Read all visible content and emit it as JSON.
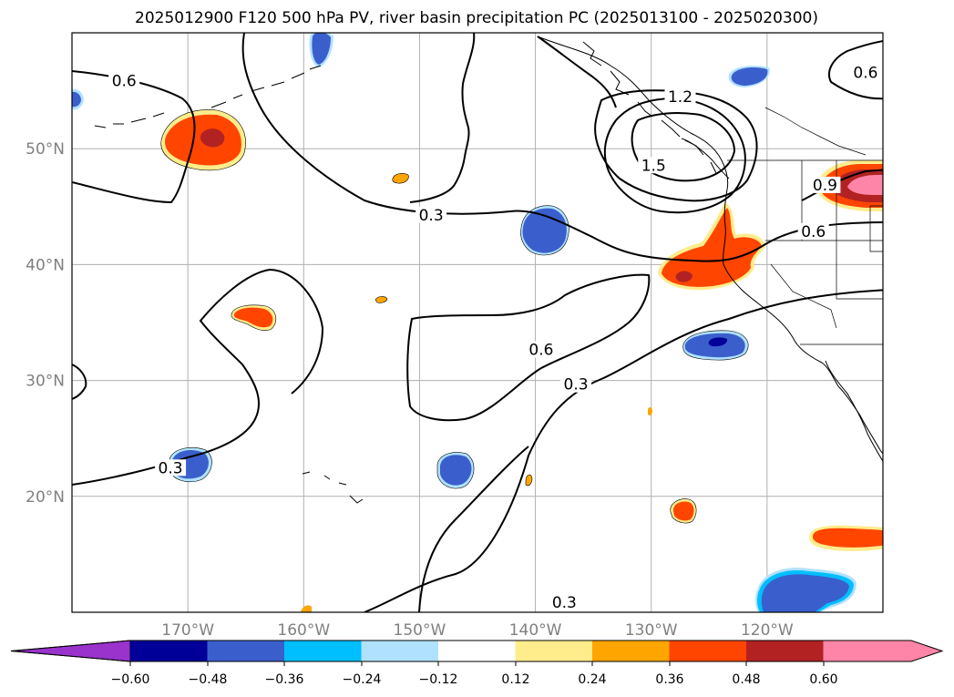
{
  "title": "2025012900 F120 500 hPa PV, river basin precipitation PC (2025013100 - 2025020300)",
  "map": {
    "lat_range": [
      10,
      60
    ],
    "lon_range": [
      -180,
      -110
    ],
    "lat_ticks": [
      {
        "value": 20,
        "label": "20°N"
      },
      {
        "value": 30,
        "label": "30°N"
      },
      {
        "value": 40,
        "label": "40°N"
      },
      {
        "value": 50,
        "label": "50°N"
      }
    ],
    "lon_ticks": [
      {
        "value": -170,
        "label": "170°W"
      },
      {
        "value": -160,
        "label": "160°W"
      },
      {
        "value": -150,
        "label": "150°W"
      },
      {
        "value": -140,
        "label": "140°W"
      },
      {
        "value": -130,
        "label": "130°W"
      },
      {
        "value": -120,
        "label": "120°W"
      }
    ],
    "gridlines": true,
    "pv_contour_labels": [
      {
        "text": "0.6",
        "lon": -175.5,
        "lat": 55.8
      },
      {
        "text": "0.3",
        "lon": -149.0,
        "lat": 44.2
      },
      {
        "text": "0.6",
        "lon": -139.5,
        "lat": 32.6
      },
      {
        "text": "0.3",
        "lon": -136.5,
        "lat": 29.6
      },
      {
        "text": "0.3",
        "lon": -171.5,
        "lat": 22.4
      },
      {
        "text": "0.3",
        "lon": -137.5,
        "lat": 10.8
      },
      {
        "text": "1.2",
        "lon": -127.5,
        "lat": 54.4
      },
      {
        "text": "1.5",
        "lon": -129.8,
        "lat": 48.5
      },
      {
        "text": "0.6",
        "lon": -111.5,
        "lat": 56.5
      },
      {
        "text": "0.9",
        "lon": -115.0,
        "lat": 46.8
      },
      {
        "text": "0.6",
        "lon": -116.0,
        "lat": 42.8
      }
    ]
  },
  "colorbar": {
    "ticks": [
      "−0.60",
      "−0.48",
      "−0.36",
      "−0.24",
      "−0.12",
      "0.12",
      "0.24",
      "0.36",
      "0.48",
      "0.60"
    ],
    "colors": [
      "#9933cc",
      "#000099",
      "#3a5fcd",
      "#00bfff",
      "#b0e2ff",
      "#ffffff",
      "#ffec8b",
      "#ffa500",
      "#ff4500",
      "#b22222",
      "#ff85a8",
      "#ff85a8"
    ],
    "under_color": "#9933cc",
    "over_color": "#ff85a8"
  },
  "precip_colors": {
    "pos1": "#ffec8b",
    "pos2": "#ffa500",
    "pos3": "#ff4500",
    "pos4": "#b22222",
    "pos5": "#ff85a8",
    "neg1": "#b0e2ff",
    "neg2": "#00bfff",
    "neg3": "#3a5fcd",
    "neg4": "#000099"
  }
}
